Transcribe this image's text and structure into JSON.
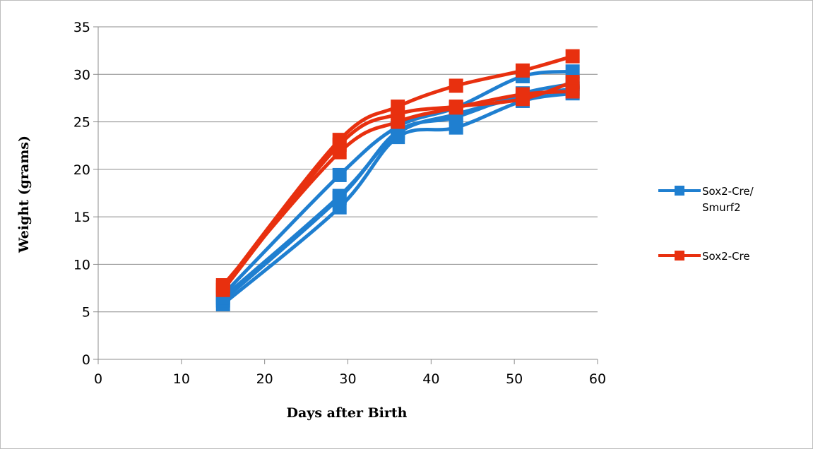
{
  "chart_data": {
    "type": "line",
    "title": "",
    "xlabel": "Days after Birth",
    "ylabel": "Weight (grams)",
    "xlim": [
      0,
      60
    ],
    "ylim": [
      0,
      35
    ],
    "xticks": [
      "0",
      "10",
      "20",
      "30",
      "40",
      "50",
      "60"
    ],
    "yticks": [
      "0",
      "5",
      "10",
      "15",
      "20",
      "25",
      "30",
      "35"
    ],
    "grid": "horizontal",
    "legend_position": "right",
    "x": [
      15,
      29,
      36,
      43,
      51,
      57
    ],
    "groups": [
      {
        "name": "Sox2-Cre/ Smurf2",
        "color": "#1f7fd0",
        "lines": [
          [
            5.8,
            16.0,
            23.4,
            24.4,
            27.2,
            28.0
          ],
          [
            6.2,
            17.0,
            24.0,
            25.5,
            28.0,
            29.0
          ],
          [
            6.8,
            19.4,
            24.5,
            26.5,
            29.8,
            30.3
          ],
          [
            6.5,
            17.2,
            23.8,
            25.8,
            27.6,
            28.5
          ]
        ]
      },
      {
        "name": "Sox2-Cre",
        "color": "#e8300f",
        "lines": [
          [
            7.6,
            23.1,
            26.6,
            28.8,
            30.4,
            31.9
          ],
          [
            7.3,
            22.6,
            25.8,
            26.6,
            27.4,
            29.2
          ],
          [
            7.8,
            21.8,
            25.0,
            26.5,
            27.9,
            28.2
          ]
        ]
      }
    ],
    "legend": [
      {
        "label_line1": "Sox2-Cre/",
        "label_line2": "Smurf2",
        "color": "#1f7fd0"
      },
      {
        "label_line1": "Sox2-Cre",
        "label_line2": "",
        "color": "#e8300f"
      }
    ]
  }
}
